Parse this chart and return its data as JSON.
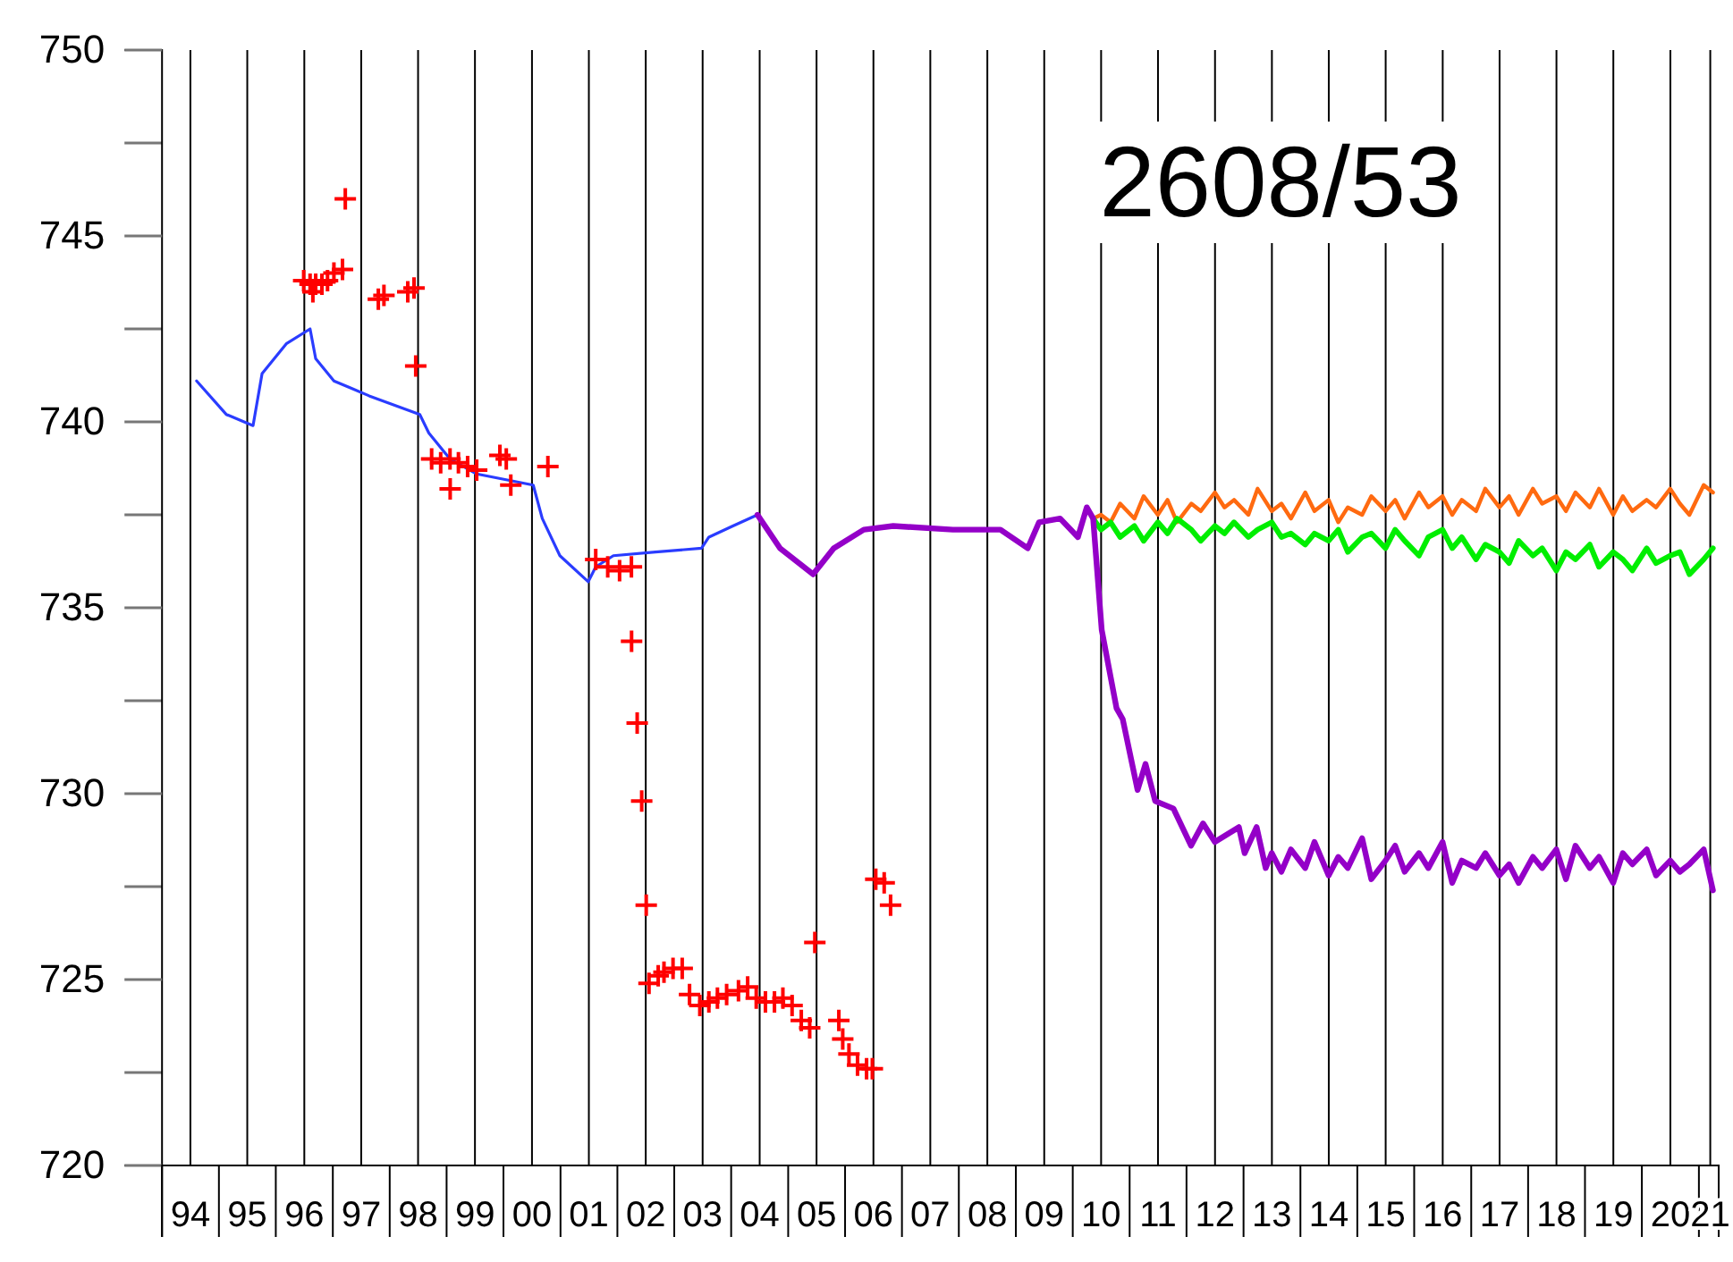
{
  "chart_data": {
    "type": "line",
    "title": "2608/53",
    "xlim": [
      "1994-01-01",
      "2021-05-08"
    ],
    "xticks": [
      {
        "value": "1994-07-02",
        "label": "94"
      },
      {
        "value": "1995-07-02",
        "label": "95"
      },
      {
        "value": "1996-07-02",
        "label": "96"
      },
      {
        "value": "1997-07-02",
        "label": "97"
      },
      {
        "value": "1998-07-02",
        "label": "98"
      },
      {
        "value": "1999-07-02",
        "label": "99"
      },
      {
        "value": "2000-07-02",
        "label": "00"
      },
      {
        "value": "2001-07-02",
        "label": "01"
      },
      {
        "value": "2002-07-02",
        "label": "02"
      },
      {
        "value": "2003-07-02",
        "label": "03"
      },
      {
        "value": "2004-07-02",
        "label": "04"
      },
      {
        "value": "2005-07-02",
        "label": "05"
      },
      {
        "value": "2006-07-02",
        "label": "06"
      },
      {
        "value": "2007-07-02",
        "label": "07"
      },
      {
        "value": "2008-07-02",
        "label": "08"
      },
      {
        "value": "2009-07-02",
        "label": "09"
      },
      {
        "value": "2010-07-02",
        "label": "10"
      },
      {
        "value": "2011-07-02",
        "label": "11"
      },
      {
        "value": "2012-07-02",
        "label": "12"
      },
      {
        "value": "2013-07-02",
        "label": "13"
      },
      {
        "value": "2014-07-02",
        "label": "14"
      },
      {
        "value": "2015-07-02",
        "label": "15"
      },
      {
        "value": "2016-07-02",
        "label": "16"
      },
      {
        "value": "2017-07-02",
        "label": "17"
      },
      {
        "value": "2018-07-02",
        "label": "18"
      },
      {
        "value": "2019-07-02",
        "label": "19"
      },
      {
        "value": "2020-07-02",
        "label": "20"
      },
      {
        "value": "2021-03-15",
        "label": "21"
      }
    ],
    "ylim": [
      720,
      750
    ],
    "yticks": [
      720,
      725,
      730,
      735,
      740,
      745,
      750
    ],
    "grid": "x",
    "marker": "none",
    "line_style": "solid",
    "series": [
      {
        "color": "#2a3cff",
        "x": [
          "1994-08-11",
          "1995-02-17",
          "1995-08-08",
          "1995-10-05",
          "1996-03-08",
          "1996-08-08",
          "1996-09-13",
          "1997-01-08",
          "1997-05-01",
          "1997-08-22",
          "1998-07-13",
          "1998-09-09",
          "1999-01-23",
          "1999-07-13",
          "2000-07-10",
          "2000-09-06",
          "2000-12-28",
          "2001-06-28",
          "2001-08-15",
          "2001-12-06",
          "2002-09-02",
          "2003-06-25",
          "2003-08-11",
          "2004-01-12",
          "2004-06-18"
        ],
        "values": [
          741.1,
          740.2,
          739.9,
          741.3,
          742.1,
          742.5,
          741.7,
          741.1,
          740.9,
          740.7,
          740.2,
          739.7,
          739,
          738.6,
          738.3,
          737.4,
          736.4,
          735.7,
          736.1,
          736.4,
          736.5,
          736.6,
          736.9,
          737.2,
          737.5
        ]
      },
      {
        "color": "#ff6a10",
        "x": [
          "2010-05-12",
          "2010-07",
          "2010-09",
          "2010-11",
          "2011-02",
          "2011-04",
          "2011-07",
          "2011-09",
          "2011-11",
          "2012-02",
          "2012-04",
          "2012-07",
          "2012-09",
          "2012-11",
          "2013-02",
          "2013-04",
          "2013-07",
          "2013-09",
          "2013-11",
          "2014-02",
          "2014-04",
          "2014-07",
          "2014-09",
          "2014-11",
          "2015-02",
          "2015-04",
          "2015-07",
          "2015-09",
          "2015-11",
          "2016-02",
          "2016-04",
          "2016-07",
          "2016-09",
          "2016-11",
          "2017-02",
          "2017-04",
          "2017-07",
          "2017-09",
          "2017-11",
          "2018-02",
          "2018-04",
          "2018-07",
          "2018-09",
          "2018-11",
          "2019-02",
          "2019-04",
          "2019-07",
          "2019-09",
          "2019-11",
          "2020-02",
          "2020-04",
          "2020-07",
          "2020-09",
          "2020-11",
          "2021-02",
          "2021-04"
        ],
        "values": [
          737.4,
          737.5,
          737.3,
          737.8,
          737.4,
          738.0,
          737.5,
          737.9,
          737.3,
          737.8,
          737.6,
          738.1,
          737.7,
          737.9,
          737.5,
          738.2,
          737.6,
          737.8,
          737.4,
          738.1,
          737.6,
          737.9,
          737.3,
          737.7,
          737.5,
          738.0,
          737.6,
          737.9,
          737.4,
          738.1,
          737.7,
          738.0,
          737.5,
          737.9,
          737.6,
          738.2,
          737.7,
          738.0,
          737.5,
          738.2,
          737.8,
          738.0,
          737.6,
          738.1,
          737.7,
          738.2,
          737.5,
          738.0,
          737.6,
          737.9,
          737.7,
          738.2,
          737.8,
          737.5,
          738.3,
          738.1
        ]
      },
      {
        "color": "#00ee00",
        "x": [
          "2010-05-12",
          "2010-07",
          "2010-09",
          "2010-11",
          "2011-02",
          "2011-04",
          "2011-07",
          "2011-09",
          "2011-11",
          "2012-02",
          "2012-04",
          "2012-07",
          "2012-09",
          "2012-11",
          "2013-02",
          "2013-04",
          "2013-07",
          "2013-09",
          "2013-11",
          "2014-02",
          "2014-04",
          "2014-07",
          "2014-09",
          "2014-11",
          "2015-02",
          "2015-04",
          "2015-07",
          "2015-09",
          "2015-11",
          "2016-02",
          "2016-04",
          "2016-07",
          "2016-09",
          "2016-11",
          "2017-02",
          "2017-04",
          "2017-07",
          "2017-09",
          "2017-11",
          "2018-02",
          "2018-04",
          "2018-07",
          "2018-09",
          "2018-11",
          "2019-02",
          "2019-04",
          "2019-07",
          "2019-09",
          "2019-11",
          "2020-02",
          "2020-04",
          "2020-07",
          "2020-09",
          "2020-11",
          "2021-02",
          "2021-04"
        ],
        "values": [
          737.4,
          737.1,
          737.3,
          736.9,
          737.2,
          736.8,
          737.3,
          737.0,
          737.4,
          737.1,
          736.8,
          737.2,
          737.0,
          737.3,
          736.9,
          737.1,
          737.3,
          736.9,
          737.0,
          736.7,
          737.0,
          736.8,
          737.1,
          736.5,
          736.9,
          737.0,
          736.6,
          737.1,
          736.8,
          736.4,
          736.9,
          737.1,
          736.6,
          736.9,
          736.3,
          736.7,
          736.5,
          736.2,
          736.8,
          736.4,
          736.6,
          736.0,
          736.5,
          736.3,
          736.7,
          736.1,
          736.5,
          736.3,
          736.0,
          736.6,
          736.2,
          736.4,
          736.5,
          735.9,
          736.3,
          736.6
        ]
      },
      {
        "color": "#9400c8",
        "x": [
          "2004-06-18",
          "2004-11-10",
          "2005-06-10",
          "2005-10-20",
          "2006-05-01",
          "2006-11-06",
          "2007-11-24",
          "2008-09-24",
          "2009-03-18",
          "2009-05-30",
          "2009-10-12",
          "2010-02-03",
          "2010-04-01",
          "2010-05-12",
          "2010-07-06",
          "2010-10-09",
          "2010-11-18",
          "2011-02-21",
          "2011-04-13",
          "2011-06-14",
          "2011-10-09",
          "2012-01-30",
          "2012-04-16",
          "2012-07-01",
          "2012-12-02",
          "2013-01-08",
          "2013-03-26",
          "2013-05-23",
          "2013-07",
          "2013-09",
          "2013-11",
          "2014-02",
          "2014-04",
          "2014-07",
          "2014-09",
          "2014-11",
          "2015-02",
          "2015-04",
          "2015-07",
          "2015-09",
          "2015-11",
          "2016-02",
          "2016-04",
          "2016-07",
          "2016-09",
          "2016-11",
          "2017-02",
          "2017-04",
          "2017-07",
          "2017-09",
          "2017-11",
          "2018-02",
          "2018-04",
          "2018-07",
          "2018-09",
          "2018-11",
          "2019-02",
          "2019-04",
          "2019-07",
          "2019-09",
          "2019-11",
          "2020-02",
          "2020-04",
          "2020-07",
          "2020-09",
          "2020-11",
          "2021-02",
          "2021-04"
        ],
        "values": [
          737.5,
          736.6,
          735.9,
          736.6,
          737.1,
          737.2,
          737.1,
          737.1,
          736.6,
          737.3,
          737.4,
          736.9,
          737.7,
          737.4,
          734.4,
          732.3,
          732,
          730.1,
          730.8,
          729.8,
          729.6,
          728.6,
          729.2,
          728.7,
          729.1,
          728.4,
          729.1,
          728,
          728.4,
          727.9,
          728.5,
          728.0,
          728.7,
          727.8,
          728.3,
          728.0,
          728.8,
          727.7,
          728.2,
          728.6,
          727.9,
          728.4,
          728.0,
          728.7,
          727.6,
          728.2,
          728.0,
          728.4,
          727.8,
          728.1,
          727.6,
          728.3,
          728.0,
          728.5,
          727.7,
          728.6,
          728.0,
          728.3,
          727.6,
          728.4,
          728.1,
          728.5,
          727.8,
          728.2,
          727.9,
          728.1,
          728.5,
          727.4
        ]
      },
      {
        "type": "scatter",
        "marker": "cross",
        "color": "#ff0000",
        "x": [
          "1996-06-28",
          "1996-08-08",
          "1996-08-26",
          "1996-09-13",
          "1996-10-23",
          "1996-11-28",
          "1997-01-08",
          "1997-03-04",
          "1997-03-22",
          "1997-10-20",
          "1997-11-25",
          "1998-04-27",
          "1998-06-06",
          "1998-06-17",
          "1998-09-27",
          "1998-11-24",
          "1999-01-23",
          "1999-03-18",
          "1999-05-16",
          "1999-07-13",
          "1999-01-24",
          "1999-12-09",
          "2000-01-19",
          "2000-02-17",
          "2000-10-12",
          "2001-08-15",
          "2001-10-31",
          "2002-01-15",
          "2002-04-01",
          "2002-04-02",
          "2002-05-08",
          "2002-06-06",
          "2002-07-05",
          "2002-07-23",
          "2002-09-20",
          "2002-10-27",
          "2002-12-24",
          "2003-02-21",
          "2003-04-09",
          "2003-06-14",
          "2003-08-11",
          "2003-10-05",
          "2003-12-03",
          "2004-02-17",
          "2004-04-16",
          "2004-06-10",
          "2004-08-08",
          "2004-10-05",
          "2004-11-28",
          "2005-01-26",
          "2005-03-26",
          "2005-05-19",
          "2005-06-21",
          "2005-11-22",
          "2005-12-17",
          "2006-01-26",
          "2006-03-22",
          "2006-05-19",
          "2006-06-25",
          "2006-07-17",
          "2006-09-09",
          "2006-10-20"
        ],
        "values": [
          743.8,
          743.7,
          743.5,
          743.7,
          743.7,
          743.8,
          744,
          744.1,
          746,
          743.3,
          743.4,
          743.5,
          743.6,
          741.5,
          739,
          738.9,
          739,
          738.9,
          738.8,
          738.7,
          738.2,
          739.1,
          739,
          738.3,
          738.8,
          736.3,
          736.1,
          736,
          736.1,
          734.1,
          731.9,
          729.8,
          727,
          724.9,
          725.1,
          725.2,
          725.3,
          725.3,
          724.6,
          724.3,
          724.4,
          724.5,
          724.6,
          724.7,
          724.8,
          724.5,
          724.4,
          724.4,
          724.5,
          724.3,
          723.9,
          723.7,
          726,
          723.9,
          723.4,
          723,
          722.7,
          722.6,
          722.6,
          727.7,
          727.6,
          727
        ]
      }
    ]
  }
}
